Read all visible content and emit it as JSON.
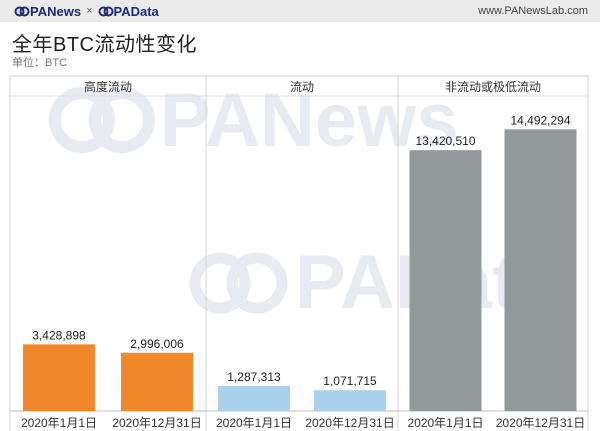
{
  "header": {
    "brand_left": "PANews",
    "brand_sep": "×",
    "brand_right": "PAData",
    "site_url": "www.PANewsLab.com"
  },
  "watermark": {
    "top": "PANews",
    "bottom": "PAData"
  },
  "colors": {
    "panel_1": "#f0892c",
    "panel_2": "#a9d1ea",
    "panel_3": "#939a9b",
    "brand": "#1c2a78"
  },
  "chart_data": {
    "type": "bar",
    "title": "全年BTC流动性变化",
    "subtitle": "单位：BTC",
    "categories": [
      "2020年1月1日",
      "2020年12月31日"
    ],
    "panels": [
      {
        "name": "高度流动",
        "values": [
          3428898,
          2996006
        ],
        "labels": [
          "3,428,898",
          "2,996,006"
        ]
      },
      {
        "name": "流动",
        "values": [
          1287313,
          1071715
        ],
        "labels": [
          "1,287,313",
          "1,071,715"
        ]
      },
      {
        "name": "非流动或极低流动",
        "values": [
          13420510,
          14492294
        ],
        "labels": [
          "13,420,510",
          "14,492,294"
        ]
      }
    ],
    "ylim": [
      0,
      16000000
    ],
    "grid": false
  }
}
